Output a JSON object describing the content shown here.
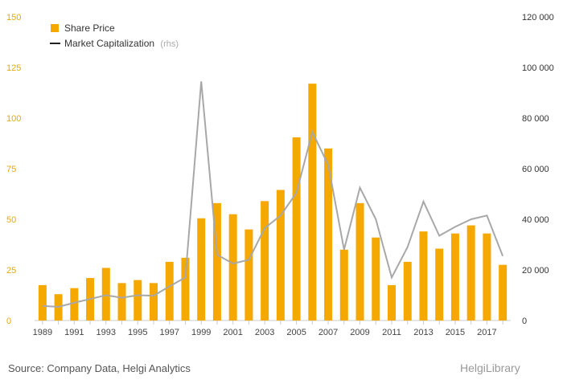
{
  "chart_data": {
    "type": "bar+line",
    "x": [
      "1989",
      "1990",
      "1991",
      "1992",
      "1993",
      "1994",
      "1995",
      "1996",
      "1997",
      "1998",
      "1999",
      "2000",
      "2001",
      "2002",
      "2003",
      "2004",
      "2005",
      "2006",
      "2007",
      "2008",
      "2009",
      "2010",
      "2011",
      "2012",
      "2013",
      "2014",
      "2015",
      "2016",
      "2017",
      "2018"
    ],
    "x_tick_labels": [
      "1989",
      "1991",
      "1993",
      "1995",
      "1997",
      "1999",
      "2001",
      "2003",
      "2005",
      "2007",
      "2009",
      "2011",
      "2013",
      "2015",
      "2017"
    ],
    "series": [
      {
        "name": "Share Price",
        "type": "bar",
        "axis": "left",
        "color": "#f5a800",
        "values": [
          17.5,
          13,
          16,
          21,
          26,
          18.5,
          20,
          18.5,
          29,
          31,
          50.5,
          58,
          52.5,
          45,
          59,
          64.5,
          90.5,
          117,
          85,
          35,
          58,
          41,
          17.5,
          29,
          44,
          35.5,
          43,
          47,
          43,
          27.5
        ]
      },
      {
        "name": "Market Capitalization",
        "legend_suffix": "(rhs)",
        "type": "line",
        "axis": "right",
        "color": "#a8a8a8",
        "values": [
          5800,
          5400,
          7000,
          8500,
          10000,
          9000,
          10000,
          9800,
          13500,
          17000,
          94500,
          26000,
          22500,
          24000,
          36500,
          41500,
          50500,
          74500,
          61500,
          28000,
          52500,
          40000,
          17000,
          29000,
          47000,
          33500,
          37000,
          40000,
          41500,
          25500
        ]
      }
    ],
    "left_axis": {
      "ylim": [
        0,
        150
      ],
      "ticks": [
        "0",
        "25",
        "50",
        "75",
        "100",
        "125",
        "150"
      ],
      "color": "#e8a900"
    },
    "right_axis": {
      "ylim": [
        0,
        120000
      ],
      "ticks": [
        "0",
        "20 000",
        "40 000",
        "60 000",
        "80 000",
        "100 000",
        "120 000"
      ]
    },
    "grid": false,
    "legend_position": "top-left"
  },
  "legend": {
    "share_price": "Share Price",
    "market_cap": "Market Capitalization",
    "market_cap_suffix": "(rhs)"
  },
  "footer": {
    "source": "Source: Company Data, Helgi Analytics",
    "brand": "HelgiLibrary"
  }
}
